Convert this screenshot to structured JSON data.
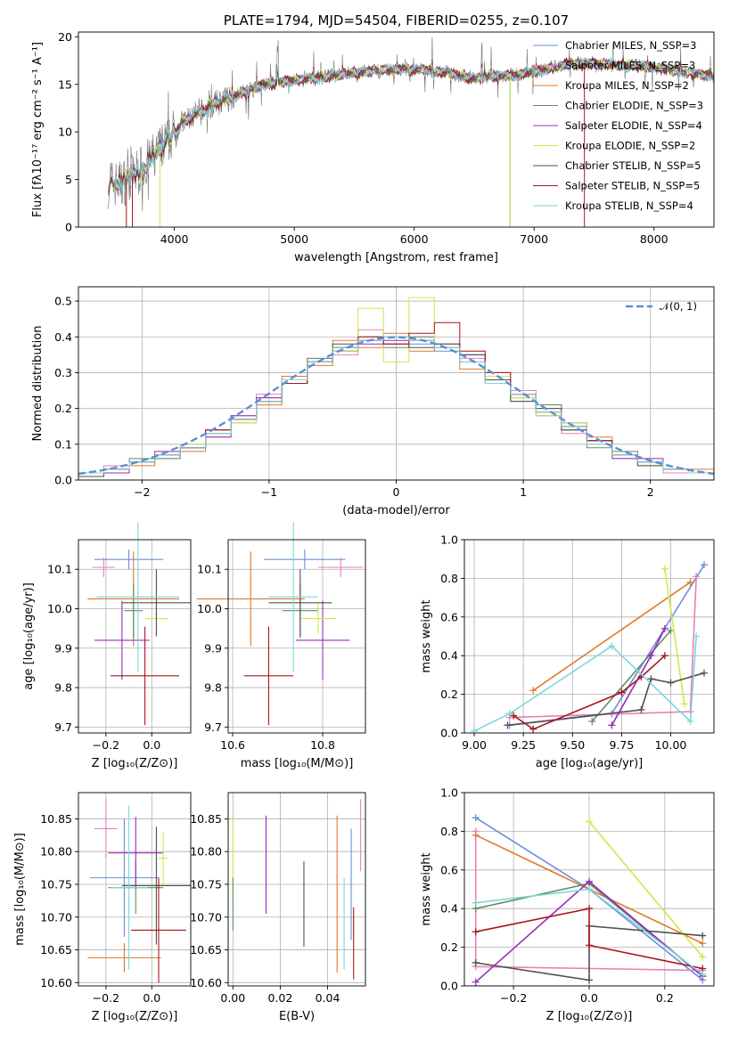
{
  "chart_data": [
    {
      "type": "line",
      "title": "PLATE=1794, MJD=54504, FIBERID=0255, z=0.107",
      "xlabel": "wavelength [Angstrom, rest frame]",
      "ylabel": "Flux [fλ10⁻¹⁷ erg cm⁻² s⁻¹ A⁻¹]",
      "xlim": [
        3200,
        8500
      ],
      "ylim": [
        0,
        20.5
      ],
      "xticks": [
        4000,
        5000,
        6000,
        7000,
        8000
      ],
      "yticks": [
        0,
        5,
        10,
        15,
        20
      ],
      "grid": false,
      "legend_placement": "right",
      "observed_spectrum_color": "#808080",
      "continuum": {
        "x": [
          3450,
          3550,
          3650,
          3750,
          3850,
          3950,
          4050,
          4150,
          4250,
          4350,
          4500,
          4700,
          4900,
          5100,
          5300,
          5500,
          5700,
          5900,
          6100,
          6300,
          6500,
          6700,
          6900,
          7100,
          7300,
          7500,
          7700,
          7900,
          8100,
          8300,
          8500
        ],
        "y": [
          4.5,
          4.6,
          5.3,
          6.4,
          7.6,
          9.2,
          10.8,
          11.6,
          12.2,
          13.0,
          13.8,
          14.8,
          15.3,
          15.5,
          15.9,
          16.2,
          16.4,
          16.6,
          16.5,
          16.2,
          15.6,
          15.9,
          16.1,
          16.6,
          17.2,
          17.2,
          17.0,
          16.9,
          16.6,
          16.2,
          15.9
        ]
      },
      "series": [
        {
          "name": "Chabrier MILES, N_SSP=3",
          "color": "#6a8fd8"
        },
        {
          "name": "Salpeter MILES, N_SSP=3",
          "color": "#e87fba"
        },
        {
          "name": "Kroupa MILES, N_SSP=2",
          "color": "#e07a2a"
        },
        {
          "name": "Chabrier ELODIE, N_SSP=3",
          "color": "#5e8e68"
        },
        {
          "name": "Salpeter ELODIE, N_SSP=4",
          "color": "#9a2cb5"
        },
        {
          "name": "Kroupa ELODIE, N_SSP=2",
          "color": "#cfe84a"
        },
        {
          "name": "Chabrier STELIB, N_SSP=5",
          "color": "#505050"
        },
        {
          "name": "Salpeter STELIB, N_SSP=5",
          "color": "#a8161e"
        },
        {
          "name": "Kroupa STELIB, N_SSP=4",
          "color": "#7fd6da"
        }
      ]
    },
    {
      "type": "bar",
      "xlabel": "(data-model)/error",
      "ylabel": "Normed distribution",
      "xlim": [
        -2.5,
        2.5
      ],
      "ylim": [
        0,
        0.54
      ],
      "xticks": [
        -2,
        -1,
        0,
        1,
        2
      ],
      "yticks": [
        0.0,
        0.1,
        0.2,
        0.3,
        0.4,
        0.5
      ],
      "grid": true,
      "legend_placement": "top-right",
      "legend_label": "𝒩(0, 1)",
      "normal_curve": {
        "mean": 0,
        "std": 1,
        "color": "#5d8fd8"
      },
      "bin_edges": [
        -2.5,
        -2.3,
        -2.1,
        -1.9,
        -1.7,
        -1.5,
        -1.3,
        -1.1,
        -0.9,
        -0.7,
        -0.5,
        -0.3,
        -0.1,
        0.1,
        0.3,
        0.5,
        0.7,
        0.9,
        1.1,
        1.3,
        1.5,
        1.7,
        1.9,
        2.1,
        2.3,
        2.5
      ],
      "histograms": [
        {
          "color": "#6a8fd8",
          "values": [
            0.02,
            0.03,
            0.05,
            0.07,
            0.09,
            0.13,
            0.17,
            0.22,
            0.28,
            0.33,
            0.37,
            0.39,
            0.4,
            0.38,
            0.36,
            0.33,
            0.29,
            0.24,
            0.19,
            0.15,
            0.11,
            0.07,
            0.05,
            0.03,
            0.02
          ]
        },
        {
          "color": "#e87fba",
          "values": [
            0.02,
            0.04,
            0.05,
            0.06,
            0.1,
            0.12,
            0.18,
            0.24,
            0.27,
            0.34,
            0.35,
            0.42,
            0.38,
            0.4,
            0.37,
            0.34,
            0.27,
            0.25,
            0.21,
            0.13,
            0.1,
            0.06,
            0.05,
            0.02,
            0.02
          ]
        },
        {
          "color": "#e07a2a",
          "values": [
            0.01,
            0.03,
            0.04,
            0.07,
            0.08,
            0.14,
            0.16,
            0.21,
            0.29,
            0.32,
            0.39,
            0.37,
            0.41,
            0.36,
            0.37,
            0.31,
            0.3,
            0.23,
            0.2,
            0.14,
            0.12,
            0.07,
            0.04,
            0.03,
            0.03
          ]
        },
        {
          "color": "#5e8e68",
          "values": [
            0.02,
            0.03,
            0.06,
            0.06,
            0.09,
            0.13,
            0.17,
            0.23,
            0.27,
            0.34,
            0.36,
            0.4,
            0.37,
            0.4,
            0.37,
            0.35,
            0.27,
            0.22,
            0.21,
            0.14,
            0.09,
            0.08,
            0.05,
            0.03,
            0.02
          ]
        },
        {
          "color": "#9a2cb5",
          "values": [
            0.02,
            0.02,
            0.05,
            0.08,
            0.09,
            0.12,
            0.18,
            0.23,
            0.28,
            0.33,
            0.36,
            0.38,
            0.39,
            0.39,
            0.38,
            0.35,
            0.28,
            0.24,
            0.18,
            0.16,
            0.11,
            0.06,
            0.06,
            0.03,
            0.02
          ]
        },
        {
          "color": "#cfe84a",
          "values": [
            0.02,
            0.03,
            0.05,
            0.07,
            0.1,
            0.13,
            0.16,
            0.22,
            0.28,
            0.33,
            0.36,
            0.48,
            0.33,
            0.51,
            0.37,
            0.36,
            0.29,
            0.23,
            0.18,
            0.16,
            0.1,
            0.07,
            0.04,
            0.03,
            0.02
          ]
        },
        {
          "color": "#505050",
          "values": [
            0.01,
            0.03,
            0.05,
            0.07,
            0.09,
            0.14,
            0.17,
            0.22,
            0.27,
            0.33,
            0.38,
            0.39,
            0.38,
            0.37,
            0.38,
            0.35,
            0.28,
            0.22,
            0.2,
            0.14,
            0.11,
            0.07,
            0.04,
            0.03,
            0.02
          ]
        },
        {
          "color": "#a8161e",
          "values": [
            0.02,
            0.03,
            0.05,
            0.07,
            0.09,
            0.14,
            0.17,
            0.22,
            0.27,
            0.33,
            0.37,
            0.4,
            0.38,
            0.41,
            0.44,
            0.36,
            0.3,
            0.24,
            0.19,
            0.15,
            0.11,
            0.07,
            0.05,
            0.03,
            0.02
          ]
        },
        {
          "color": "#7fd6da",
          "values": [
            0.02,
            0.03,
            0.05,
            0.07,
            0.09,
            0.13,
            0.17,
            0.22,
            0.28,
            0.33,
            0.37,
            0.39,
            0.4,
            0.39,
            0.37,
            0.33,
            0.27,
            0.24,
            0.19,
            0.15,
            0.1,
            0.07,
            0.05,
            0.03,
            0.02
          ]
        }
      ]
    },
    {
      "type": "scatter",
      "xlabel": "Z [log₁₀(Z/Z⊙)]",
      "ylabel": "age  [log₁₀(age/yr)]",
      "xlim": [
        -0.32,
        0.17
      ],
      "ylim": [
        9.685,
        10.175
      ],
      "xticks": [
        -0.2,
        0.0
      ],
      "yticks": [
        9.7,
        9.8,
        9.9,
        10.0,
        10.1
      ],
      "grid": true,
      "points": [
        {
          "color": "#6a8fd8",
          "x": -0.1,
          "y": 10.125,
          "xerr": 0.15,
          "yerr": 0.025
        },
        {
          "color": "#e87fba",
          "x": -0.21,
          "y": 10.105,
          "xerr": 0.05,
          "yerr": 0.025
        },
        {
          "color": "#e07a2a",
          "x": -0.08,
          "y": 10.025,
          "xerr": 0.2,
          "yerr": 0.12
        },
        {
          "color": "#5e8e68",
          "x": -0.08,
          "y": 9.995,
          "xerr": 0.04,
          "yerr": 0.07
        },
        {
          "color": "#9a2cb5",
          "x": -0.13,
          "y": 9.92,
          "xerr": 0.12,
          "yerr": 0.1
        },
        {
          "color": "#cfe84a",
          "x": 0.02,
          "y": 9.975,
          "xerr": 0.05,
          "yerr": 0.04
        },
        {
          "color": "#505050",
          "x": 0.02,
          "y": 10.015,
          "xerr": 0.15,
          "yerr": 0.085
        },
        {
          "color": "#a8161e",
          "x": -0.03,
          "y": 9.83,
          "xerr": 0.15,
          "yerr": 0.125
        },
        {
          "color": "#7fd6da",
          "x": -0.06,
          "y": 10.03,
          "xerr": 0.18,
          "yerr": 0.19
        }
      ]
    },
    {
      "type": "scatter",
      "xlabel": "mass [log₁₀(M/M⊙)]",
      "ylabel": "",
      "xlim": [
        10.59,
        10.895
      ],
      "ylim": [
        9.685,
        10.175
      ],
      "xticks": [
        10.6,
        10.8
      ],
      "yticks": [
        9.7,
        9.8,
        9.9,
        10.0,
        10.1
      ],
      "grid": true,
      "points": [
        {
          "color": "#6a8fd8",
          "x": 10.76,
          "y": 10.125,
          "xerr": 0.09,
          "yerr": 0.025
        },
        {
          "color": "#e87fba",
          "x": 10.84,
          "y": 10.105,
          "xerr": 0.05,
          "yerr": 0.025
        },
        {
          "color": "#e07a2a",
          "x": 10.64,
          "y": 10.025,
          "xerr": 0.12,
          "yerr": 0.12
        },
        {
          "color": "#5e8e68",
          "x": 10.75,
          "y": 9.995,
          "xerr": 0.04,
          "yerr": 0.07
        },
        {
          "color": "#9a2cb5",
          "x": 10.8,
          "y": 9.92,
          "xerr": 0.06,
          "yerr": 0.1
        },
        {
          "color": "#cfe84a",
          "x": 10.79,
          "y": 9.975,
          "xerr": 0.04,
          "yerr": 0.04
        },
        {
          "color": "#505050",
          "x": 10.75,
          "y": 10.015,
          "xerr": 0.07,
          "yerr": 0.085
        },
        {
          "color": "#a8161e",
          "x": 10.68,
          "y": 9.83,
          "xerr": 0.055,
          "yerr": 0.125
        },
        {
          "color": "#7fd6da",
          "x": 10.735,
          "y": 10.03,
          "xerr": 0.055,
          "yerr": 0.19
        }
      ]
    },
    {
      "type": "line",
      "xlabel": "age  [log₁₀(age/yr)]",
      "ylabel": "mass weight",
      "xlim": [
        8.95,
        10.22
      ],
      "ylim": [
        0,
        1.0
      ],
      "xticks": [
        9.0,
        9.25,
        9.5,
        9.75,
        10.0
      ],
      "yticks": [
        0.0,
        0.2,
        0.4,
        0.6,
        0.8,
        1.0
      ],
      "grid": true,
      "series": [
        {
          "color": "#6a8fd8",
          "x": [
            9.18,
            9.7,
            10.17
          ],
          "y": [
            0.04,
            0.1,
            0.87
          ]
        },
        {
          "color": "#e87fba",
          "x": [
            9.18,
            10.1,
            10.13
          ],
          "y": [
            0.08,
            0.11,
            0.81
          ]
        },
        {
          "color": "#e07a2a",
          "x": [
            9.3,
            10.1
          ],
          "y": [
            0.22,
            0.78
          ]
        },
        {
          "color": "#5e8e68",
          "x": [
            9.6,
            10.0
          ],
          "y": [
            0.06,
            0.53
          ]
        },
        {
          "color": "#9a2cb5",
          "x": [
            9.7,
            9.9,
            9.97
          ],
          "y": [
            0.04,
            0.4,
            0.54
          ]
        },
        {
          "color": "#cfe84a",
          "x": [
            9.97,
            10.07
          ],
          "y": [
            0.85,
            0.15
          ]
        },
        {
          "color": "#505050",
          "x": [
            9.17,
            9.85,
            9.9,
            10.0,
            10.17
          ],
          "y": [
            0.04,
            0.12,
            0.28,
            0.26,
            0.31
          ]
        },
        {
          "color": "#a8161e",
          "x": [
            9.2,
            9.3,
            9.75,
            9.85,
            9.97
          ],
          "y": [
            0.09,
            0.02,
            0.21,
            0.29,
            0.4
          ]
        },
        {
          "color": "#7fd6da",
          "x": [
            9.0,
            9.18,
            9.7,
            10.1,
            10.13
          ],
          "y": [
            0.01,
            0.1,
            0.45,
            0.06,
            0.5
          ]
        }
      ]
    },
    {
      "type": "scatter",
      "xlabel": "Z [log₁₀(Z/Z⊙)]",
      "ylabel": "mass [log₁₀(M/M⊙)]",
      "xlim": [
        -0.32,
        0.17
      ],
      "ylim": [
        10.595,
        10.89
      ],
      "xticks": [
        -0.2,
        0.0
      ],
      "yticks": [
        10.6,
        10.65,
        10.7,
        10.75,
        10.8,
        10.85
      ],
      "grid": true,
      "points": [
        {
          "color": "#6a8fd8",
          "x": -0.12,
          "y": 10.76,
          "xerr": 0.15,
          "yerr": 0.09
        },
        {
          "color": "#e87fba",
          "x": -0.2,
          "y": 10.835,
          "xerr": 0.05,
          "yerr": 0.045
        },
        {
          "color": "#e07a2a",
          "x": -0.12,
          "y": 10.638,
          "xerr": 0.16,
          "yerr": 0.022
        },
        {
          "color": "#5e8e68",
          "x": -0.07,
          "y": 10.745,
          "xerr": 0.12,
          "yerr": 0.04
        },
        {
          "color": "#9a2cb5",
          "x": -0.07,
          "y": 10.798,
          "xerr": 0.12,
          "yerr": 0.055
        },
        {
          "color": "#cfe84a",
          "x": 0.05,
          "y": 10.79,
          "xerr": 0.02,
          "yerr": 0.04
        },
        {
          "color": "#505050",
          "x": 0.02,
          "y": 10.748,
          "xerr": 0.15,
          "yerr": 0.09
        },
        {
          "color": "#a8161e",
          "x": 0.03,
          "y": 10.68,
          "xerr": 0.12,
          "yerr": 0.08
        },
        {
          "color": "#7fd6da",
          "x": -0.1,
          "y": 10.745,
          "xerr": 0.08,
          "yerr": 0.125
        }
      ]
    },
    {
      "type": "scatter",
      "xlabel": "E(B-V)",
      "ylabel": "",
      "xlim": [
        -0.002,
        0.056
      ],
      "ylim": [
        10.595,
        10.89
      ],
      "xticks": [
        0.0,
        0.02,
        0.04
      ],
      "yticks": [
        10.6,
        10.65,
        10.7,
        10.75,
        10.8,
        10.85
      ],
      "grid": true,
      "points": [
        {
          "color": "#e87fba",
          "x": 0.054,
          "y": 10.825,
          "xerr": 0,
          "yerr": 0.055
        },
        {
          "color": "#e07a2a",
          "x": 0.044,
          "y": 10.735,
          "xerr": 0,
          "yerr": 0.12
        },
        {
          "color": "#9a2cb5",
          "x": 0.014,
          "y": 10.78,
          "xerr": 0,
          "yerr": 0.075
        },
        {
          "color": "#cfe84a",
          "x": 0.0,
          "y": 10.79,
          "xerr": 0,
          "yerr": 0.06
        },
        {
          "color": "#5e8e68",
          "x": 0.0,
          "y": 10.72,
          "xerr": 0,
          "yerr": 0.04
        },
        {
          "color": "#505050",
          "x": 0.03,
          "y": 10.72,
          "xerr": 0,
          "yerr": 0.065
        },
        {
          "color": "#a8161e",
          "x": 0.051,
          "y": 10.66,
          "xerr": 0,
          "yerr": 0.055
        },
        {
          "color": "#6a8fd8",
          "x": 0.05,
          "y": 10.75,
          "xerr": 0,
          "yerr": 0.085
        },
        {
          "color": "#7fd6da",
          "x": 0.047,
          "y": 10.69,
          "xerr": 0,
          "yerr": 0.07
        }
      ]
    },
    {
      "type": "line",
      "xlabel": "Z [log₁₀(Z/Z⊙)]",
      "ylabel": "mass weight",
      "xlim": [
        -0.33,
        0.33
      ],
      "ylim": [
        0,
        1.0
      ],
      "xticks": [
        -0.2,
        0.0,
        0.2
      ],
      "yticks": [
        0.0,
        0.2,
        0.4,
        0.6,
        0.8,
        1.0
      ],
      "grid": true,
      "series": [
        {
          "color": "#6a8fd8",
          "x": [
            -0.3,
            0.0,
            0.3
          ],
          "y": [
            0.87,
            0.5,
            0.03
          ]
        },
        {
          "color": "#e87fba",
          "x": [
            -0.3,
            -0.3,
            0.3
          ],
          "y": [
            0.8,
            0.1,
            0.08
          ]
        },
        {
          "color": "#e07a2a",
          "x": [
            -0.3,
            0.3
          ],
          "y": [
            0.78,
            0.22
          ]
        },
        {
          "color": "#5e8e68",
          "x": [
            -0.3,
            0.0,
            0.3
          ],
          "y": [
            0.4,
            0.53,
            0.05
          ]
        },
        {
          "color": "#9a2cb5",
          "x": [
            -0.3,
            0.0,
            0.3
          ],
          "y": [
            0.02,
            0.54,
            0.05
          ]
        },
        {
          "color": "#cfe84a",
          "x": [
            0.0,
            0.3
          ],
          "y": [
            0.85,
            0.15
          ]
        },
        {
          "color": "#505050",
          "x": [
            -0.3,
            0.0,
            0.0,
            0.3
          ],
          "y": [
            0.12,
            0.03,
            0.31,
            0.26
          ]
        },
        {
          "color": "#a8161e",
          "x": [
            -0.3,
            0.0,
            0.0,
            0.3
          ],
          "y": [
            0.28,
            0.4,
            0.21,
            0.09
          ]
        },
        {
          "color": "#7fd6da",
          "x": [
            -0.3,
            0.0,
            0.3
          ],
          "y": [
            0.43,
            0.5,
            0.06
          ]
        }
      ]
    }
  ]
}
